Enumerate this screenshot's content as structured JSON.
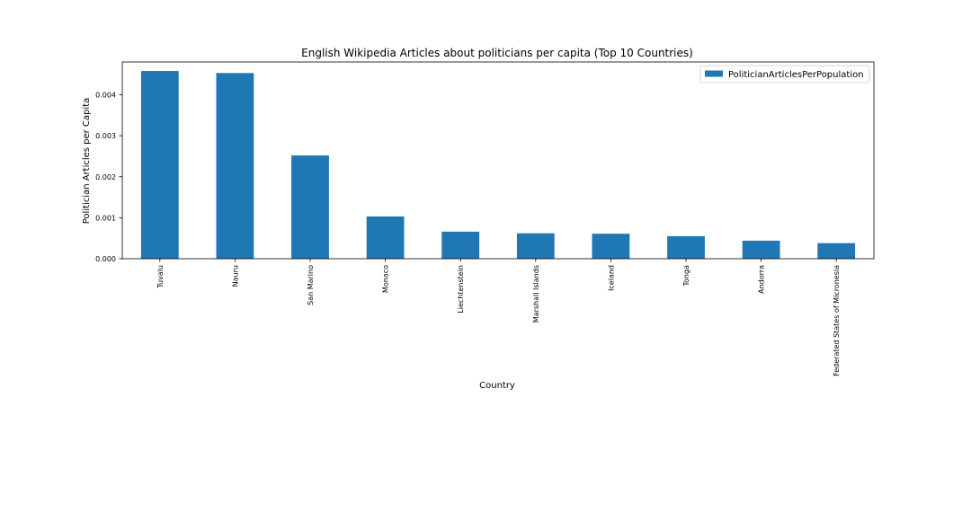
{
  "chart_data": {
    "type": "bar",
    "title": "English Wikipedia Articles about politicians per capita (Top 10 Countries)",
    "xlabel": "Country",
    "ylabel": "Politician Articles per Capita",
    "categories": [
      "Tuvalu",
      "Nauru",
      "San Marino",
      "Monaco",
      "Liechtenstein",
      "Marshall Islands",
      "Iceland",
      "Tonga",
      "Andorra",
      "Federated States of Micronesia"
    ],
    "series": [
      {
        "name": "PoliticianArticlesPerPopulation",
        "values": [
          0.00458,
          0.00453,
          0.00252,
          0.00103,
          0.00066,
          0.00062,
          0.00061,
          0.00055,
          0.00044,
          0.00038
        ],
        "color": "#1f77b4"
      }
    ],
    "ylim": [
      0,
      0.0048
    ],
    "yticks": [
      "0.000",
      "0.001",
      "0.002",
      "0.003",
      "0.004"
    ],
    "legend_position": "top-right",
    "grid": false
  }
}
